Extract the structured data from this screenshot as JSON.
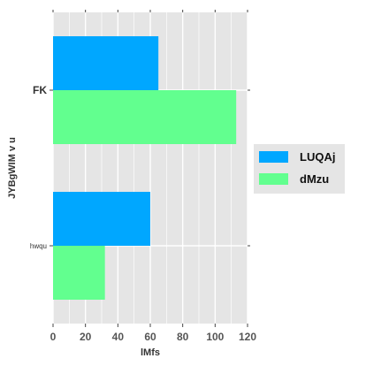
{
  "chart_data": {
    "type": "bar",
    "orientation": "horizontal",
    "categories": [
      "FK",
      "hwqu"
    ],
    "series": [
      {
        "name": "LUQAj",
        "color": "#00a7ff",
        "values": [
          65,
          60
        ]
      },
      {
        "name": "dMzu",
        "color": "#62ff8f",
        "values": [
          113,
          32
        ]
      }
    ],
    "xlabel": "lMfs",
    "ylabel": "JYBgWIM v u",
    "xlim": [
      0,
      120
    ],
    "xticks": [
      0,
      20,
      40,
      60,
      80,
      100,
      120
    ],
    "grid": true,
    "legend_position": "right"
  }
}
